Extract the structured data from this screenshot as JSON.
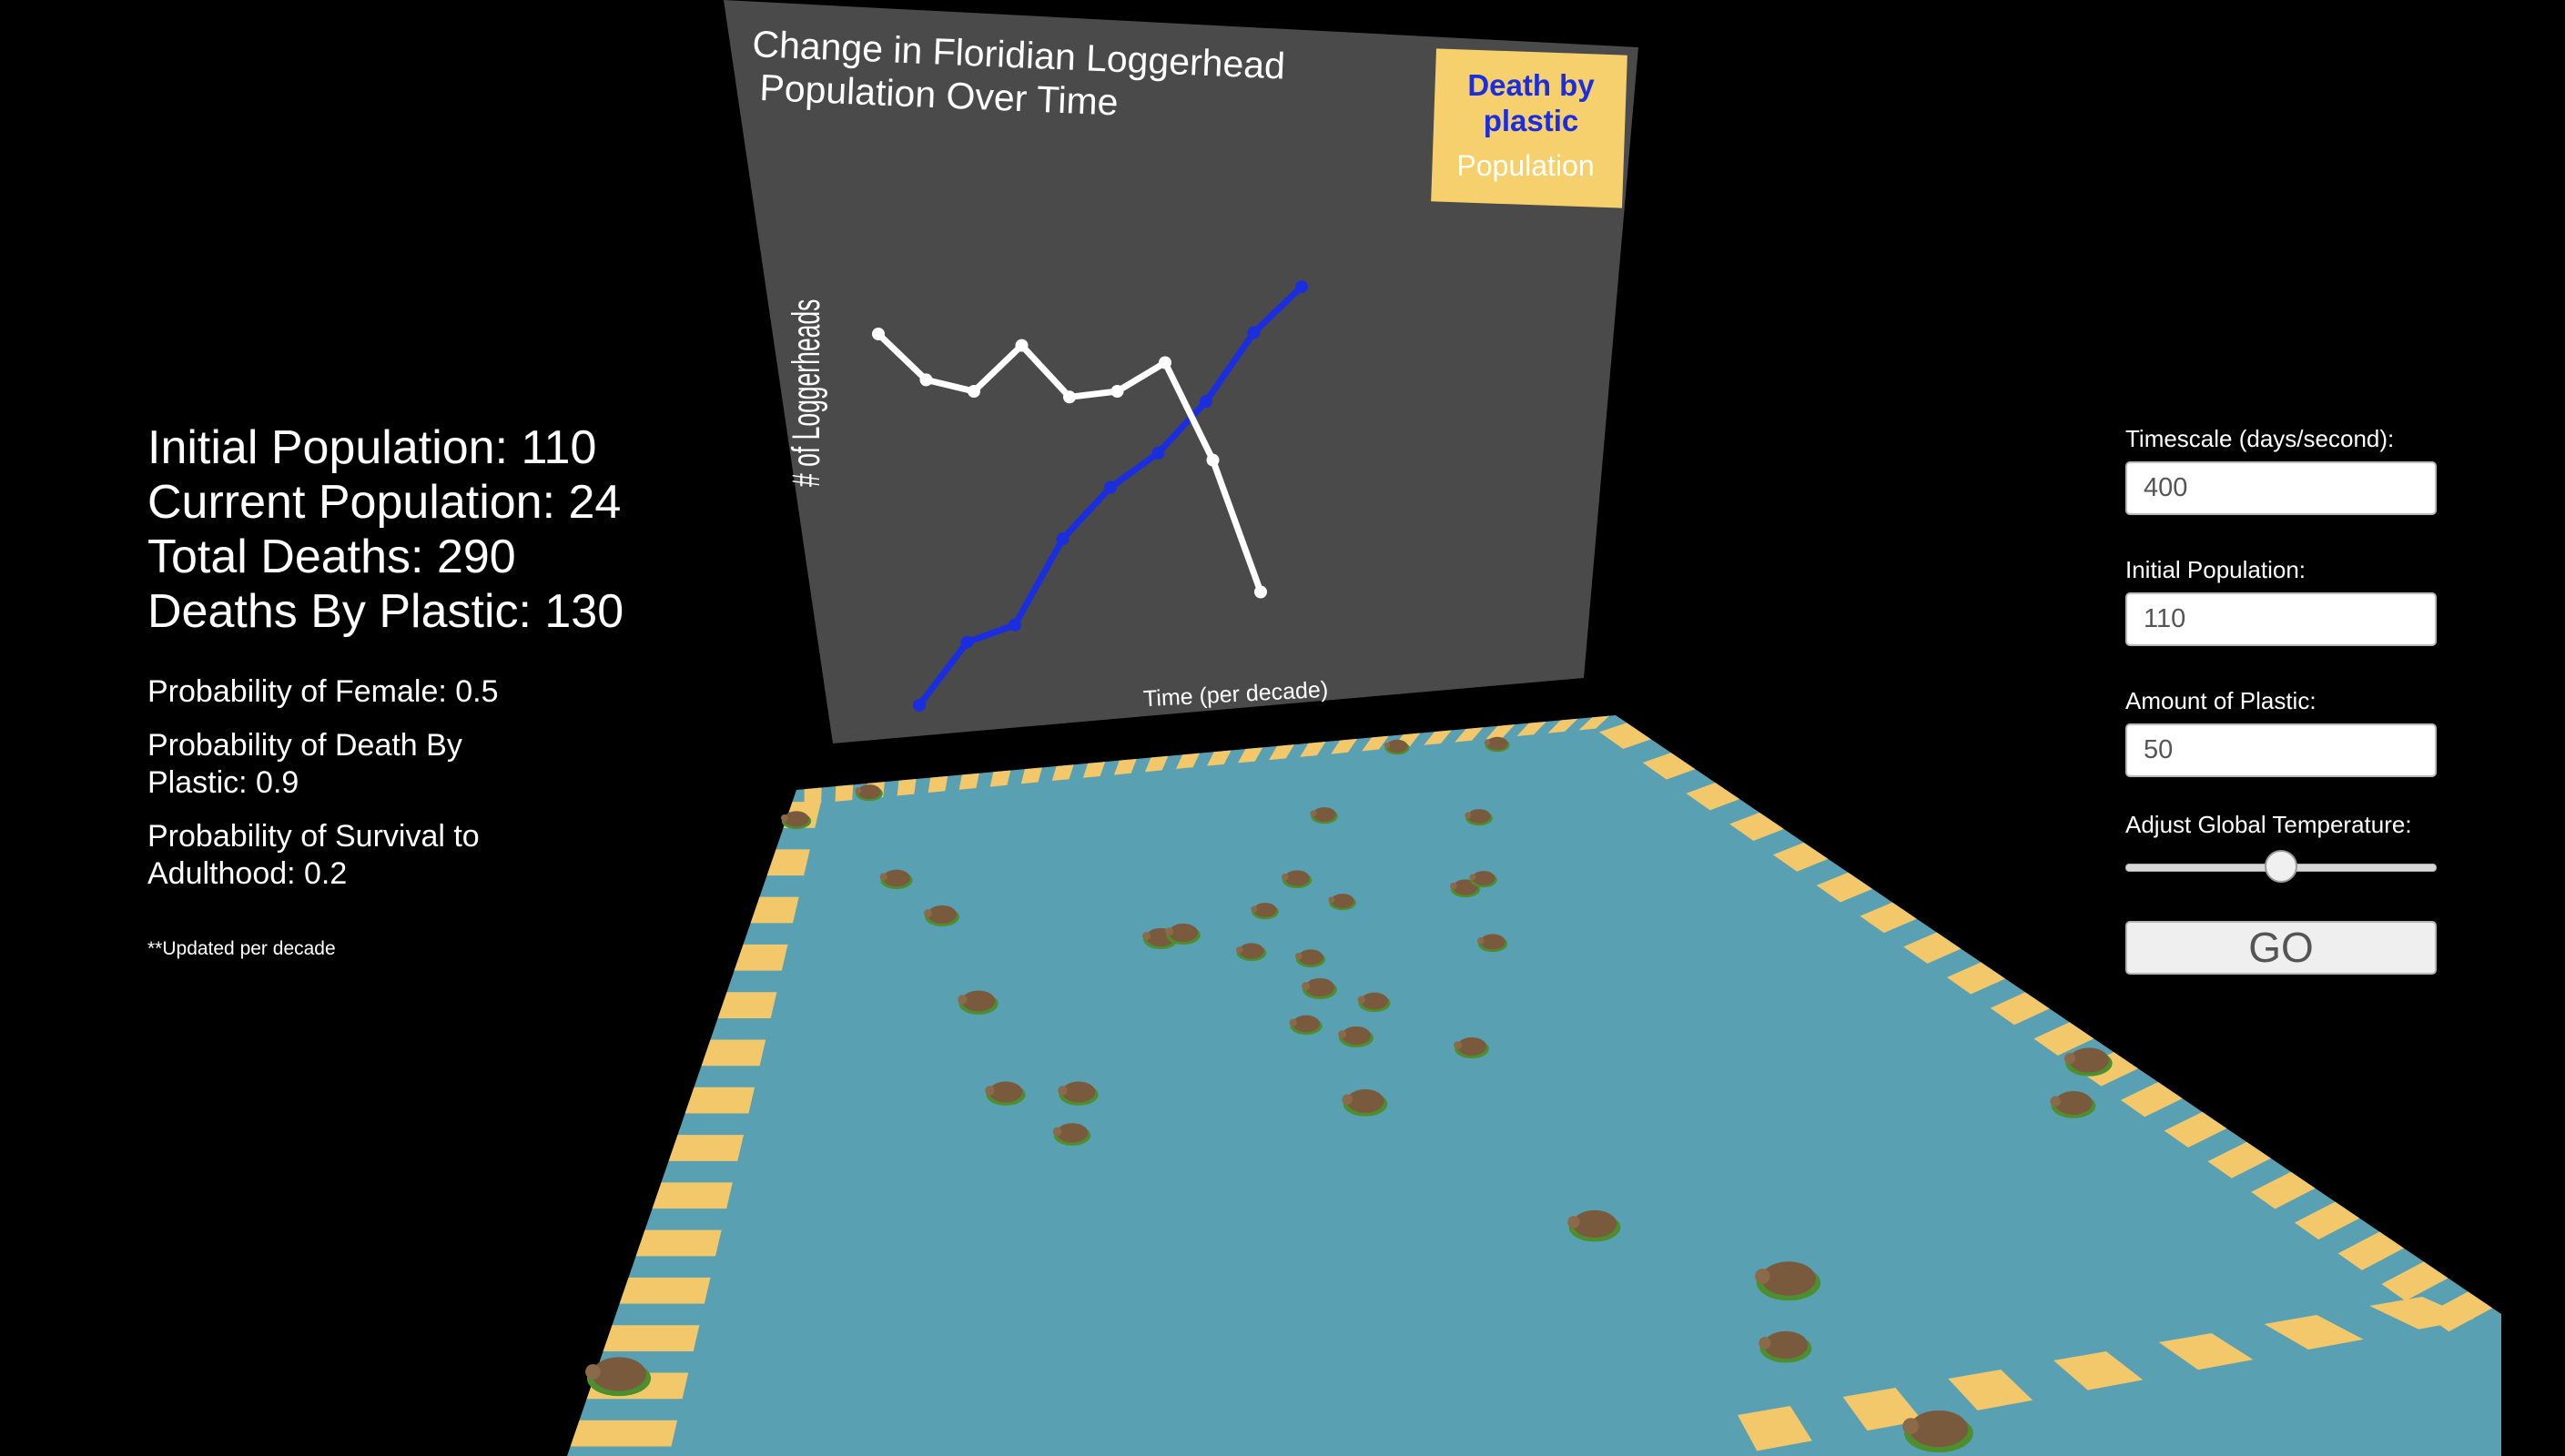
{
  "stats": {
    "initial_population": "Initial Population: 110",
    "current_population": "Current Population: 24",
    "total_deaths": "Total Deaths: 290",
    "deaths_by_plastic": "Deaths By Plastic: 130",
    "prob_female": "Probability of Female: 0.5",
    "prob_death_plastic": "Probability of Death By Plastic: 0.9",
    "prob_survival": "Probability of Survival to Adulthood: 0.2",
    "note": "**Updated per decade"
  },
  "controls": {
    "timescale_label": "Timescale (days/second):",
    "timescale_value": "400",
    "initial_pop_label": "Initial Population:",
    "initial_pop_value": "110",
    "plastic_label": "Amount of Plastic:",
    "plastic_value": "50",
    "temperature_label": "Adjust Global Temperature:",
    "temperature_level": 0.5,
    "go_label": "GO"
  },
  "chart_data": {
    "type": "line",
    "title": "Change in Floridian Loggerhead Population Over Time",
    "xlabel": "Time (per decade)",
    "ylabel": "# of Loggerheads",
    "legend": [
      "Death by plastic",
      "Population"
    ],
    "legend_placement": "top-right",
    "series": [
      {
        "name": "Death by plastic",
        "color": "#1a2ee0",
        "values": [
          0,
          11,
          14,
          29,
          38,
          44,
          53,
          65,
          73
        ]
      },
      {
        "name": "Population",
        "color": "#ffffff",
        "values": [
          60,
          52,
          50,
          58,
          49,
          50,
          55,
          38,
          15
        ]
      }
    ]
  },
  "colors": {
    "water": "#5aa0b3",
    "stripe": "#f2c86a",
    "board": "#4a4a4a",
    "legend_bg": "#f5d06c",
    "turtle": "#7a5a3c"
  }
}
